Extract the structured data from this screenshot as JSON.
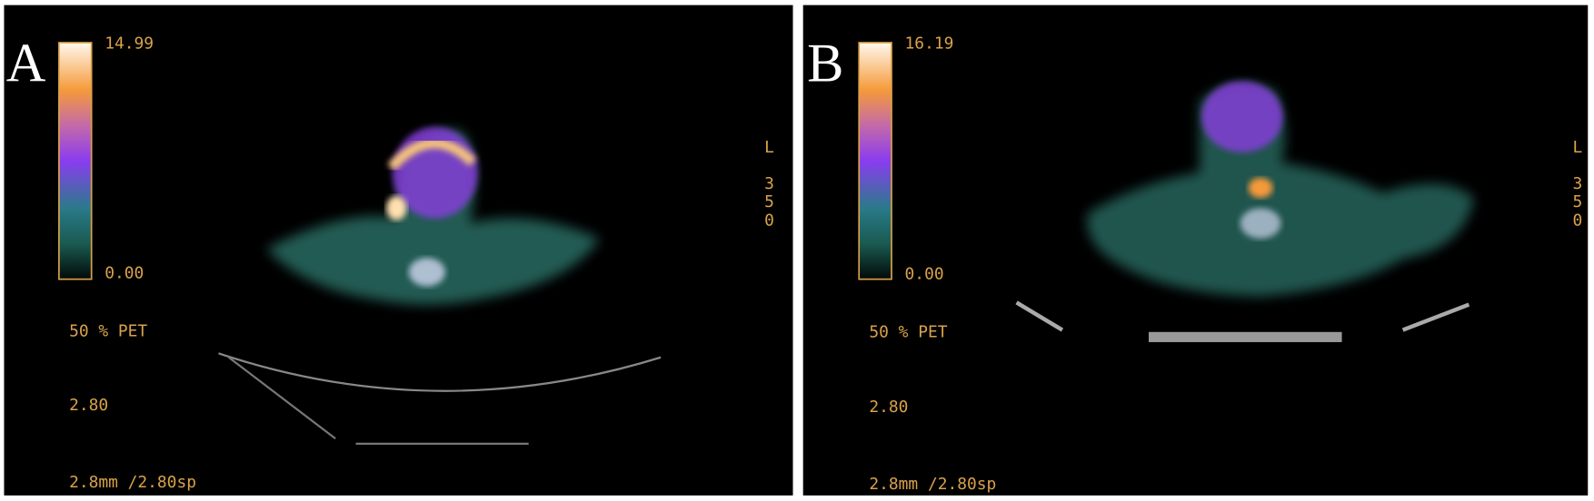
{
  "panels": [
    {
      "label": "A",
      "scale_max": "14.99",
      "scale_min": "0.00",
      "blend": "50 % PET",
      "thickness": "2.80",
      "spacing": "2.8mm /2.80sp",
      "orientation_letter": "L",
      "orientation_digits": [
        "3",
        "5",
        "0"
      ]
    },
    {
      "label": "B",
      "scale_max": "16.19",
      "scale_min": "0.00",
      "blend": "50 % PET",
      "thickness": "2.80",
      "spacing": "2.8mm /2.80sp",
      "orientation_letter": "L",
      "orientation_digits": [
        "3",
        "5",
        "0"
      ]
    }
  ]
}
